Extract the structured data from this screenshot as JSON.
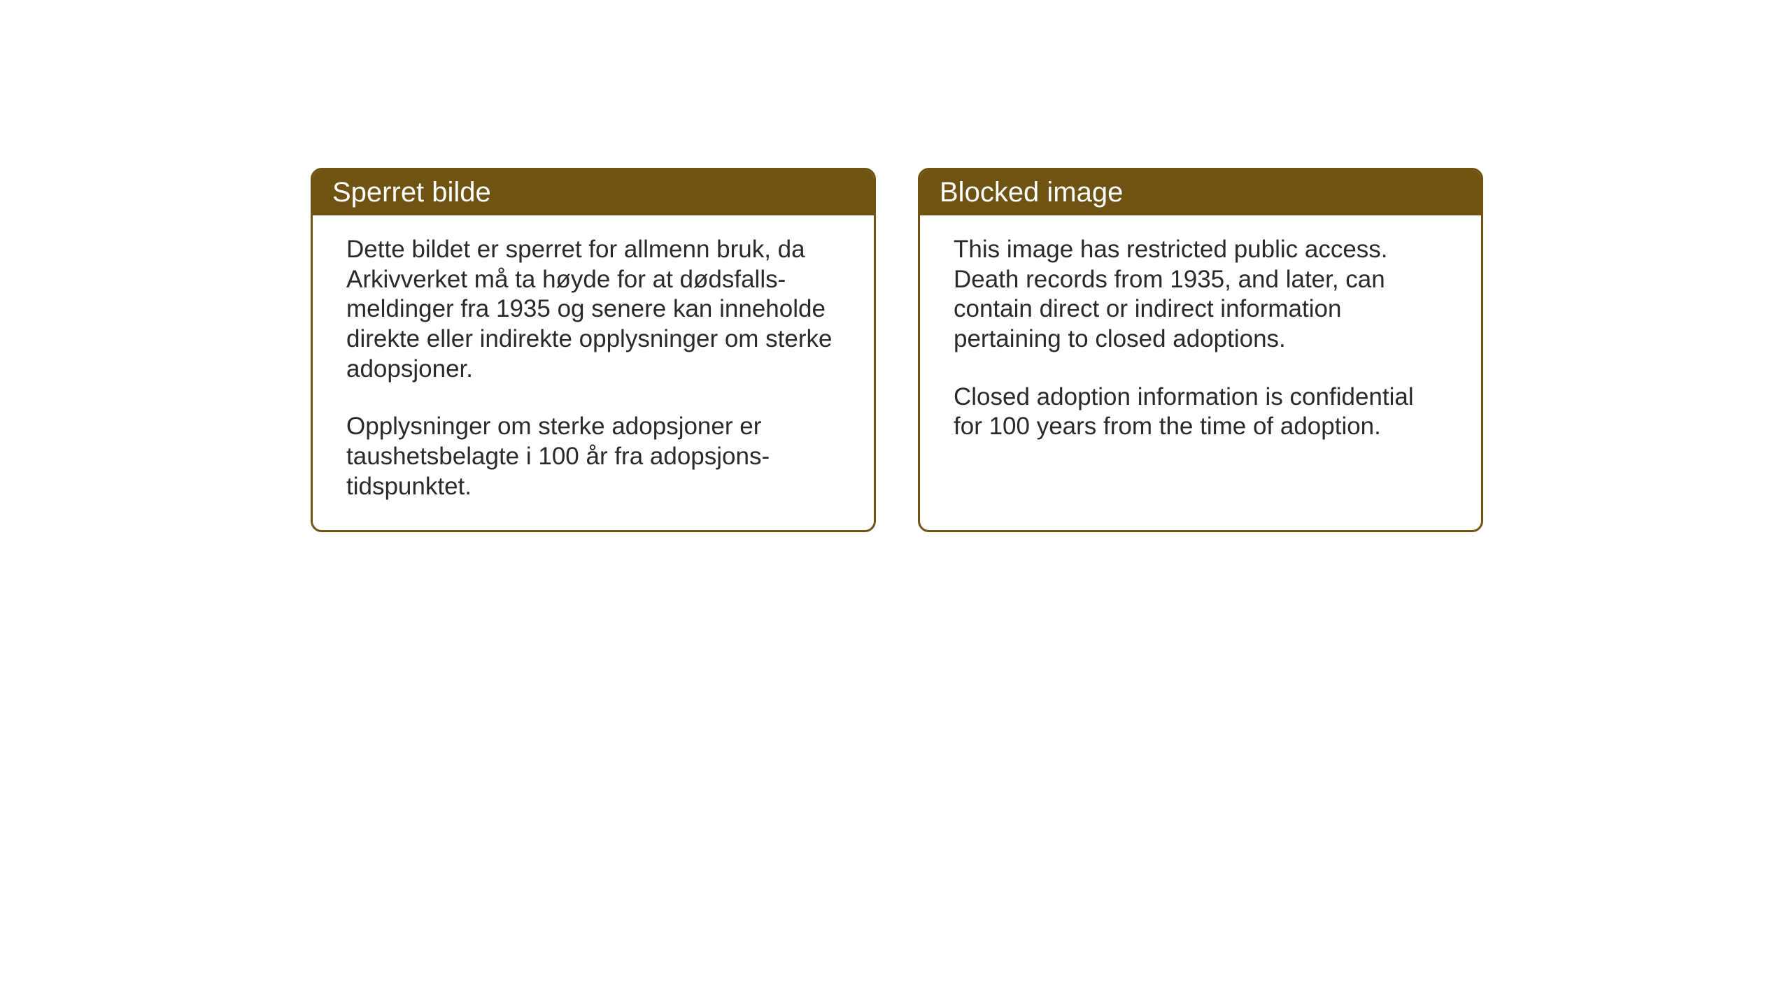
{
  "styling": {
    "header_bg_color": "#6e5313",
    "border_color": "#6e5313",
    "header_text_color": "#ffffff",
    "body_text_color": "#2a2a2a",
    "body_bg_color": "#ffffff",
    "page_bg_color": "#ffffff",
    "header_fontsize": 40,
    "body_fontsize": 35,
    "border_radius": 16,
    "border_width": 3
  },
  "left_box": {
    "title": "Sperret bilde",
    "paragraph1": "Dette bildet er sperret for allmenn bruk, da Arkivverket må ta høyde for at dødsfalls-meldinger fra 1935 og senere kan inneholde direkte eller indirekte opplysninger om sterke adopsjoner.",
    "paragraph2": "Opplysninger om sterke adopsjoner er taushetsbelagte i 100 år fra adopsjons-tidspunktet."
  },
  "right_box": {
    "title": "Blocked image",
    "paragraph1": "This image has restricted public access. Death records from 1935, and later, can contain direct or indirect information pertaining to closed adoptions.",
    "paragraph2": "Closed adoption information is confidential for 100 years from the time of adoption."
  }
}
